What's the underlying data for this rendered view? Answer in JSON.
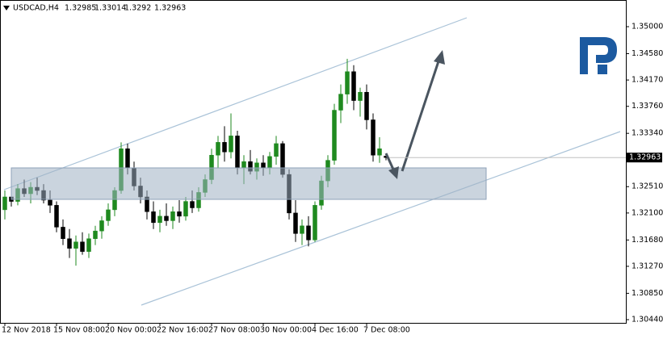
{
  "chart_data": {
    "type": "candlestick",
    "symbol": "USDCAD,H4",
    "categories": [
      "12 Nov 2018",
      null,
      null,
      null,
      null,
      null,
      null,
      null,
      "15 Nov 08:00",
      null,
      null,
      null,
      null,
      null,
      null,
      null,
      "20 Nov 00:00",
      null,
      null,
      null,
      null,
      null,
      null,
      null,
      "22 Nov 16:00",
      null,
      null,
      null,
      null,
      null,
      null,
      null,
      "27 Nov 08:00",
      null,
      null,
      null,
      null,
      null,
      null,
      null,
      "30 Nov 00:00",
      null,
      null,
      null,
      null,
      null,
      null,
      null,
      "4 Dec 16:00",
      null,
      null,
      null,
      null,
      null,
      null,
      null,
      "7 Dec 08:00",
      null,
      null,
      null
    ],
    "candles": [
      [
        1.3215,
        1.3245,
        1.32,
        1.3235
      ],
      [
        1.3235,
        1.325,
        1.322,
        1.3228
      ],
      [
        1.3228,
        1.3255,
        1.3222,
        1.3248
      ],
      [
        1.3248,
        1.3262,
        1.3235,
        1.324
      ],
      [
        1.324,
        1.3258,
        1.3225,
        1.325
      ],
      [
        1.325,
        1.3265,
        1.3238,
        1.3245
      ],
      [
        1.3245,
        1.3255,
        1.3225,
        1.323
      ],
      [
        1.323,
        1.3245,
        1.321,
        1.3222
      ],
      [
        1.3222,
        1.3228,
        1.318,
        1.3188
      ],
      [
        1.3188,
        1.32,
        1.316,
        1.317
      ],
      [
        1.317,
        1.3185,
        1.314,
        1.3155
      ],
      [
        1.3155,
        1.3175,
        1.3128,
        1.3165
      ],
      [
        1.3165,
        1.318,
        1.3145,
        1.315
      ],
      [
        1.315,
        1.3178,
        1.314,
        1.317
      ],
      [
        1.317,
        1.319,
        1.316,
        1.3182
      ],
      [
        1.3182,
        1.3205,
        1.317,
        1.3198
      ],
      [
        1.3198,
        1.3225,
        1.319,
        1.3215
      ],
      [
        1.3215,
        1.325,
        1.3205,
        1.3245
      ],
      [
        1.3245,
        1.332,
        1.324,
        1.331
      ],
      [
        1.331,
        1.3318,
        1.327,
        1.328
      ],
      [
        1.328,
        1.329,
        1.3245,
        1.3252
      ],
      [
        1.3252,
        1.3265,
        1.3225,
        1.3235
      ],
      [
        1.3235,
        1.3245,
        1.32,
        1.3212
      ],
      [
        1.3212,
        1.3228,
        1.3185,
        1.3195
      ],
      [
        1.3195,
        1.3215,
        1.318,
        1.3205
      ],
      [
        1.3205,
        1.3225,
        1.319,
        1.3198
      ],
      [
        1.3198,
        1.322,
        1.3185,
        1.3212
      ],
      [
        1.3212,
        1.323,
        1.3195,
        1.3205
      ],
      [
        1.3205,
        1.3235,
        1.3198,
        1.3228
      ],
      [
        1.3228,
        1.3245,
        1.321,
        1.3218
      ],
      [
        1.3218,
        1.325,
        1.3212,
        1.3242
      ],
      [
        1.3242,
        1.327,
        1.3235,
        1.3262
      ],
      [
        1.3262,
        1.331,
        1.3255,
        1.33
      ],
      [
        1.33,
        1.333,
        1.328,
        1.332
      ],
      [
        1.332,
        1.3345,
        1.329,
        1.3305
      ],
      [
        1.3305,
        1.3365,
        1.3295,
        1.333
      ],
      [
        1.333,
        1.3338,
        1.327,
        1.328
      ],
      [
        1.328,
        1.33,
        1.3255,
        1.329
      ],
      [
        1.329,
        1.3308,
        1.327,
        1.3275
      ],
      [
        1.3275,
        1.3295,
        1.3262,
        1.3288
      ],
      [
        1.3288,
        1.33,
        1.3268,
        1.328
      ],
      [
        1.328,
        1.3305,
        1.327,
        1.3298
      ],
      [
        1.3298,
        1.333,
        1.3285,
        1.3318
      ],
      [
        1.3318,
        1.3322,
        1.3265,
        1.327
      ],
      [
        1.327,
        1.3278,
        1.32,
        1.321
      ],
      [
        1.321,
        1.323,
        1.3165,
        1.3178
      ],
      [
        1.3178,
        1.32,
        1.316,
        1.319
      ],
      [
        1.319,
        1.3205,
        1.3158,
        1.3168
      ],
      [
        1.3168,
        1.3228,
        1.3165,
        1.3222
      ],
      [
        1.3222,
        1.3268,
        1.3215,
        1.326
      ],
      [
        1.326,
        1.33,
        1.325,
        1.3292
      ],
      [
        1.3292,
        1.338,
        1.3285,
        1.337
      ],
      [
        1.337,
        1.341,
        1.335,
        1.3395
      ],
      [
        1.3395,
        1.345,
        1.338,
        1.343
      ],
      [
        1.343,
        1.344,
        1.337,
        1.3385
      ],
      [
        1.3385,
        1.3405,
        1.336,
        1.3398
      ],
      [
        1.3398,
        1.341,
        1.334,
        1.3355
      ],
      [
        1.3355,
        1.3365,
        1.329,
        1.33
      ],
      [
        1.33,
        1.3328,
        1.3288,
        1.331
      ],
      [
        1.32985,
        1.33014,
        1.3292,
        1.32963
      ]
    ],
    "bull_color": "#1f8a1f",
    "bear_color": "#000000",
    "ylim": [
      1.3039,
      1.3539
    ],
    "yticks": [
      {
        "value": 1.35,
        "label": "1.35000"
      },
      {
        "value": 1.3458,
        "label": "1.34580"
      },
      {
        "value": 1.3417,
        "label": "1.34170"
      },
      {
        "value": 1.3376,
        "label": "1.33760"
      },
      {
        "value": 1.3334,
        "label": "1.33340"
      },
      {
        "value": 1.3251,
        "label": "1.32510"
      },
      {
        "value": 1.321,
        "label": "1.32100"
      },
      {
        "value": 1.3168,
        "label": "1.31680"
      },
      {
        "value": 1.3127,
        "label": "1.31270"
      },
      {
        "value": 1.3085,
        "label": "1.30850"
      },
      {
        "value": 1.3044,
        "label": "1.30440"
      }
    ]
  }
}
